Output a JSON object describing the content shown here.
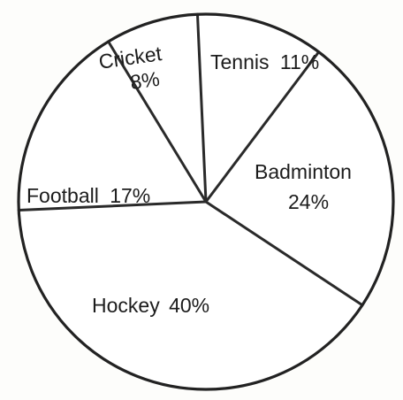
{
  "chart_data": {
    "type": "pie",
    "title": "",
    "categories": [
      "Tennis",
      "Badminton",
      "Hockey",
      "Football",
      "Cricket"
    ],
    "values": [
      11,
      24,
      40,
      17,
      8
    ],
    "unit": "%",
    "labels": [
      {
        "name": "Tennis",
        "value": "11%"
      },
      {
        "name": "Badminton",
        "value": "24%"
      },
      {
        "name": "Hockey",
        "value": "40%"
      },
      {
        "name": "Football",
        "value": "17%"
      },
      {
        "name": "Cricket",
        "value": "8%"
      }
    ],
    "colors": {
      "fill": "#ffffff",
      "stroke": "#222222",
      "text": "#1c1c1c"
    },
    "legend": "none",
    "start_angle_description": "first slice begins at top (12 o'clock) and proceeds clockwise"
  }
}
